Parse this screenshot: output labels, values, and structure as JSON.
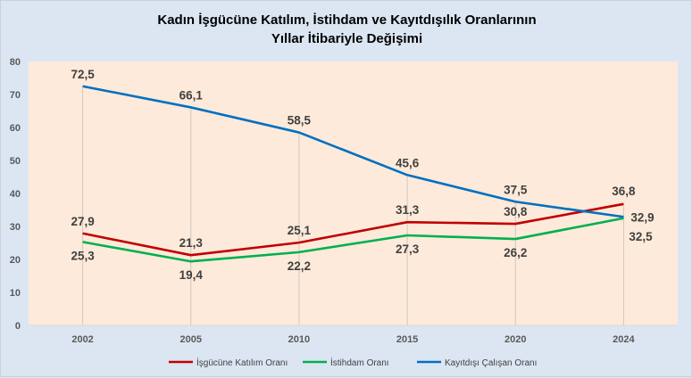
{
  "chart_data": {
    "type": "line",
    "title_line1": "Kadın İşgücüne Katılım,  İstihdam ve Kayıtdışılık  Oranlarının",
    "title_line2": "Yıllar İtibariyle  Değişimi",
    "categories": [
      "2002",
      "2005",
      "2010",
      "2015",
      "2020",
      "2024"
    ],
    "ylim": [
      0,
      80
    ],
    "yticks": [
      0,
      10,
      20,
      30,
      40,
      50,
      60,
      70,
      80
    ],
    "grid": "vertical drop lines",
    "legend_position": "bottom",
    "series": [
      {
        "name": "İşgücüne Katılım Oranı",
        "color": "#c00000",
        "values": [
          27.9,
          21.3,
          25.1,
          31.3,
          30.8,
          36.8
        ],
        "labels": [
          "27,9",
          "21,3",
          "25,1",
          "31,3",
          "30,8",
          "36,8"
        ],
        "label_pos": "above"
      },
      {
        "name": "İstihdam Oranı",
        "color": "#00b050",
        "values": [
          25.3,
          19.4,
          22.2,
          27.3,
          26.2,
          32.5
        ],
        "labels": [
          "25,3",
          "19,4",
          "22,2",
          "27,3",
          "26,2",
          "32,5"
        ],
        "label_pos": "below"
      },
      {
        "name": "Kayıtdışı Çalışan Oranı",
        "color": "#0070c0",
        "values": [
          72.5,
          66.1,
          58.5,
          45.6,
          37.5,
          32.9
        ],
        "labels": [
          "72,5",
          "66,1",
          "58,5",
          "45,6",
          "37,5",
          "32,9"
        ],
        "label_pos": "above"
      }
    ]
  }
}
